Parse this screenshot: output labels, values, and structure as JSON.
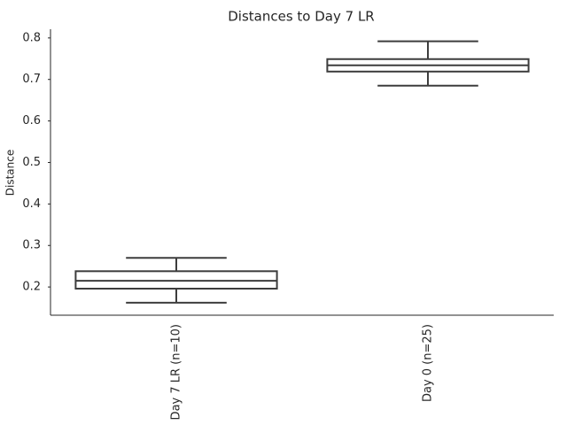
{
  "chart_data": {
    "type": "box",
    "title": "Distances to Day 7 LR",
    "y_label": "Distance",
    "categories": [
      "Day 7 LR (n=10)",
      "Day 0 (n=25)"
    ],
    "whisker_low": [
      0.162,
      0.685
    ],
    "q1": [
      0.196,
      0.719
    ],
    "median": [
      0.215,
      0.734
    ],
    "q3": [
      0.238,
      0.749
    ],
    "whisker_high": [
      0.27,
      0.792
    ],
    "color": "#3d3d3d",
    "fill": "#ffffff",
    "ylim": [
      0.132,
      0.821
    ],
    "yticks": [
      0.2,
      0.3,
      0.4,
      0.5,
      0.6,
      0.7,
      0.8
    ],
    "grid": false
  }
}
